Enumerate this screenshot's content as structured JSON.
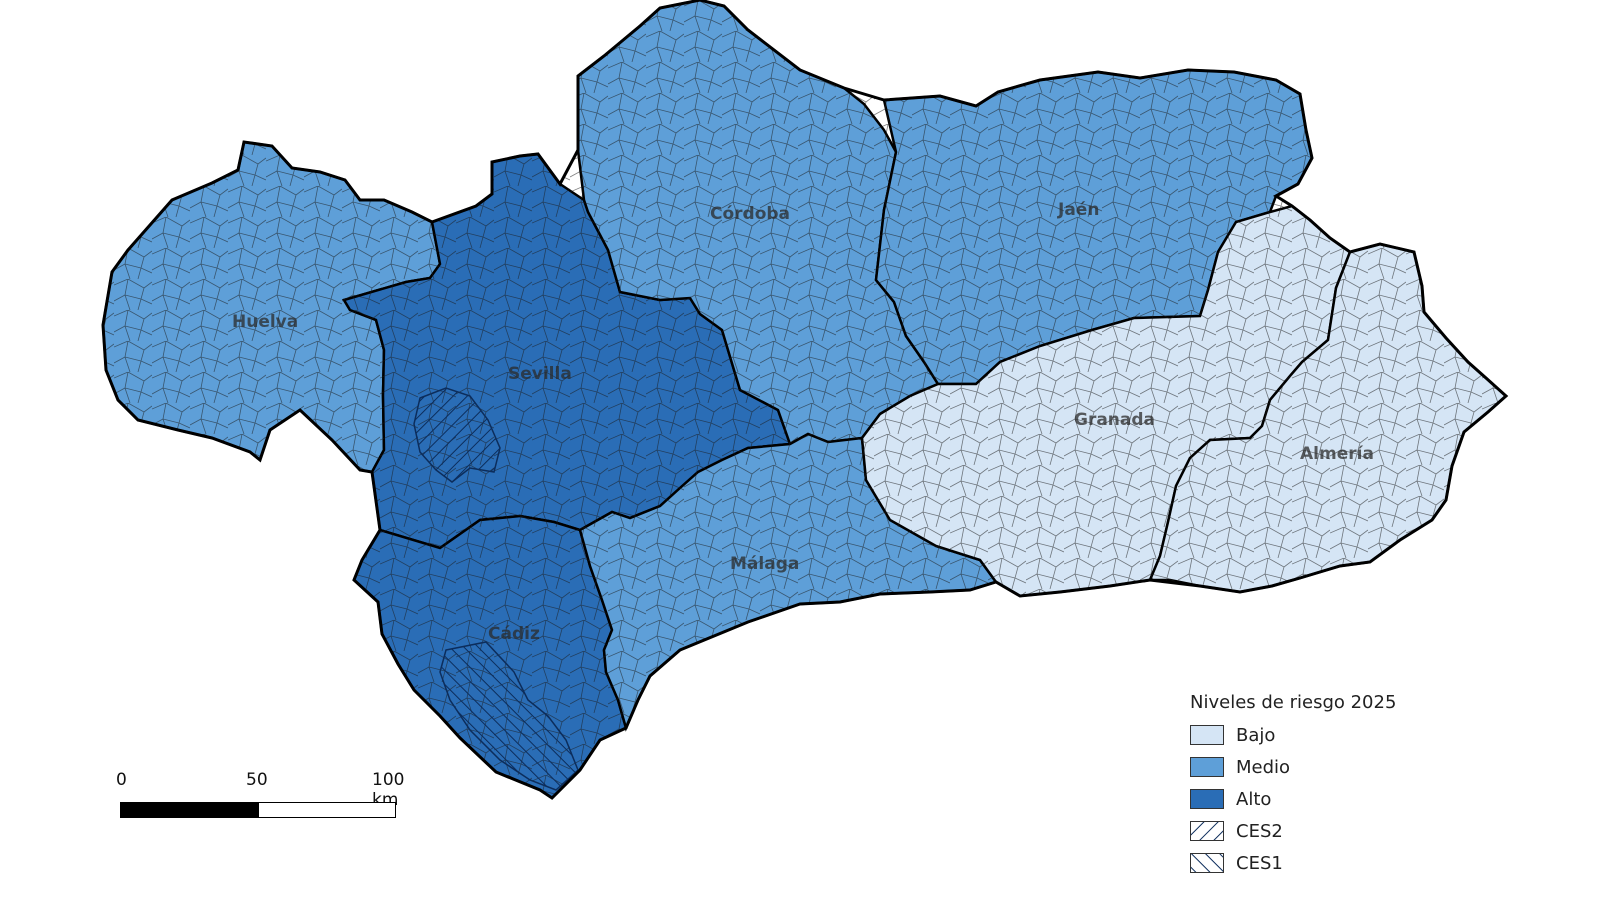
{
  "colors": {
    "bajo": "#d5e5f5",
    "medio": "#5e9fd8",
    "alto": "#2a6db6",
    "border": "#111111",
    "province_border": "#000000"
  },
  "provinces": [
    {
      "id": "huelva",
      "name": "Huelva",
      "level": "medio"
    },
    {
      "id": "sevilla",
      "name": "Sevilla",
      "level": "alto"
    },
    {
      "id": "cordoba",
      "name": "Córdoba",
      "level": "medio"
    },
    {
      "id": "jaen",
      "name": "Jaén",
      "level": "medio"
    },
    {
      "id": "cadiz",
      "name": "Cádiz",
      "level": "alto"
    },
    {
      "id": "malaga",
      "name": "Málaga",
      "level": "medio"
    },
    {
      "id": "granada",
      "name": "Granada",
      "level": "bajo"
    },
    {
      "id": "almeria",
      "name": "Almería",
      "level": "bajo"
    }
  ],
  "legend": {
    "title": "Niveles de riesgo 2025",
    "items": [
      {
        "key": "bajo",
        "label": "Bajo",
        "pattern": "none"
      },
      {
        "key": "medio",
        "label": "Medio",
        "pattern": "none"
      },
      {
        "key": "alto",
        "label": "Alto",
        "pattern": "none"
      },
      {
        "key": "ces2",
        "label": "CES2",
        "pattern": "forward-hatch"
      },
      {
        "key": "ces1",
        "label": "CES1",
        "pattern": "back-hatch"
      }
    ]
  },
  "scale_bar": {
    "ticks": [
      "0",
      "50",
      "100 km"
    ]
  }
}
